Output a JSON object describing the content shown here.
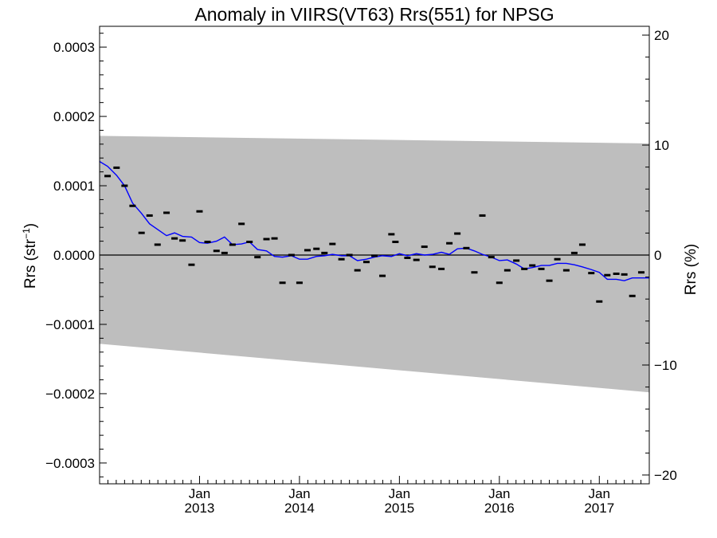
{
  "chart_data": {
    "type": "scatter",
    "title": "Anomaly in VIIRS(VT63) Rrs(551) for NPSG",
    "ylabel_left": "Rrs (str",
    "ylabel_left_sup": "−1",
    "ylabel_left_close": ")",
    "ylabel_right": "Rrs (%)",
    "ylim": [
      -0.00033,
      0.00033
    ],
    "ylim_right": [
      -20.8,
      20.8
    ],
    "xlim": [
      2012.0,
      2017.5
    ],
    "y_ticks": [
      {
        "value": 0.0003,
        "label": "0.0003"
      },
      {
        "value": 0.0002,
        "label": "0.0002"
      },
      {
        "value": 0.0001,
        "label": "0.0001"
      },
      {
        "value": 0.0,
        "label": "0.0000"
      },
      {
        "value": -0.0001,
        "label": "−0.0001"
      },
      {
        "value": -0.0002,
        "label": "−0.0002"
      },
      {
        "value": -0.0003,
        "label": "−0.0003"
      }
    ],
    "y_ticks_right": [
      {
        "value": 20,
        "label": "20"
      },
      {
        "value": 10,
        "label": "10"
      },
      {
        "value": 0,
        "label": "0"
      },
      {
        "value": -10,
        "label": "−10"
      },
      {
        "value": -20,
        "label": "−20"
      }
    ],
    "x_ticks": [
      {
        "value": 2013.0,
        "month": "Jan",
        "year": "2013"
      },
      {
        "value": 2014.0,
        "month": "Jan",
        "year": "2014"
      },
      {
        "value": 2015.0,
        "month": "Jan",
        "year": "2015"
      },
      {
        "value": 2016.0,
        "month": "Jan",
        "year": "2016"
      },
      {
        "value": 2017.0,
        "month": "Jan",
        "year": "2017"
      }
    ],
    "band": {
      "upper": [
        [
          2012.0,
          0.000172
        ],
        [
          2017.5,
          0.000161
        ]
      ],
      "lower": [
        [
          2012.0,
          -0.000128
        ],
        [
          2017.5,
          -0.000198
        ]
      ],
      "color": "#bebebe"
    },
    "points": [
      [
        2012.08,
        0.000114
      ],
      [
        2012.17,
        0.000126
      ],
      [
        2012.25,
        0.0001
      ],
      [
        2012.33,
        7.1e-05
      ],
      [
        2012.42,
        3.2e-05
      ],
      [
        2012.5,
        5.7e-05
      ],
      [
        2012.58,
        1.5e-05
      ],
      [
        2012.67,
        6.1e-05
      ],
      [
        2012.75,
        2.4e-05
      ],
      [
        2012.83,
        2.1e-05
      ],
      [
        2012.92,
        -1.4e-05
      ],
      [
        2013.0,
        6.3e-05
      ],
      [
        2013.08,
        1.9e-05
      ],
      [
        2013.17,
        6e-06
      ],
      [
        2013.25,
        3e-06
      ],
      [
        2013.33,
        1.5e-05
      ],
      [
        2013.42,
        4.5e-05
      ],
      [
        2013.5,
        1.9e-05
      ],
      [
        2013.58,
        -3e-06
      ],
      [
        2013.67,
        2.3e-05
      ],
      [
        2013.75,
        2.4e-05
      ],
      [
        2013.83,
        -4e-05
      ],
      [
        2013.92,
        0.0
      ],
      [
        2014.0,
        -4e-05
      ],
      [
        2014.08,
        7e-06
      ],
      [
        2014.17,
        9e-06
      ],
      [
        2014.25,
        3e-06
      ],
      [
        2014.33,
        1.6e-05
      ],
      [
        2014.42,
        -6e-06
      ],
      [
        2014.5,
        0.0
      ],
      [
        2014.58,
        -2.2e-05
      ],
      [
        2014.67,
        -1e-05
      ],
      [
        2014.75,
        -1e-06
      ],
      [
        2014.83,
        -3e-05
      ],
      [
        2014.92,
        3e-05
      ],
      [
        2014.96,
        1.9e-05
      ],
      [
        2015.08,
        -4e-06
      ],
      [
        2015.17,
        -7e-06
      ],
      [
        2015.25,
        1.2e-05
      ],
      [
        2015.33,
        -1.7e-05
      ],
      [
        2015.42,
        -2e-05
      ],
      [
        2015.5,
        1.7e-05
      ],
      [
        2015.58,
        3.1e-05
      ],
      [
        2015.67,
        1e-05
      ],
      [
        2015.75,
        -2.5e-05
      ],
      [
        2015.83,
        5.7e-05
      ],
      [
        2015.92,
        -3e-06
      ],
      [
        2016.0,
        -4e-05
      ],
      [
        2016.08,
        -2.2e-05
      ],
      [
        2016.17,
        -8e-06
      ],
      [
        2016.25,
        -2e-05
      ],
      [
        2016.33,
        -1.5e-05
      ],
      [
        2016.42,
        -2e-05
      ],
      [
        2016.5,
        -3.7e-05
      ],
      [
        2016.58,
        -6e-06
      ],
      [
        2016.67,
        -2.2e-05
      ],
      [
        2016.75,
        3e-06
      ],
      [
        2016.83,
        1.5e-05
      ],
      [
        2016.92,
        -2.6e-05
      ],
      [
        2017.0,
        -6.7e-05
      ],
      [
        2017.08,
        -2.9e-05
      ],
      [
        2017.17,
        -2.7e-05
      ],
      [
        2017.25,
        -2.8e-05
      ],
      [
        2017.33,
        -5.9e-05
      ],
      [
        2017.42,
        -2.5e-05
      ]
    ],
    "trend": [
      [
        2012.0,
        0.000135
      ],
      [
        2012.08,
        0.000128
      ],
      [
        2012.17,
        0.000115
      ],
      [
        2012.25,
        0.0001
      ],
      [
        2012.33,
        7.5e-05
      ],
      [
        2012.42,
        6e-05
      ],
      [
        2012.5,
        4.5e-05
      ],
      [
        2012.58,
        3.7e-05
      ],
      [
        2012.67,
        2.8e-05
      ],
      [
        2012.75,
        3.2e-05
      ],
      [
        2012.83,
        2.7e-05
      ],
      [
        2012.92,
        2.6e-05
      ],
      [
        2013.0,
        1.8e-05
      ],
      [
        2013.08,
        1.7e-05
      ],
      [
        2013.17,
        2e-05
      ],
      [
        2013.25,
        2.6e-05
      ],
      [
        2013.33,
        1.5e-05
      ],
      [
        2013.42,
        1.6e-05
      ],
      [
        2013.5,
        1.9e-05
      ],
      [
        2013.58,
        8e-06
      ],
      [
        2013.67,
        6e-06
      ],
      [
        2013.75,
        -2e-06
      ],
      [
        2013.83,
        -3e-06
      ],
      [
        2013.92,
        -1e-06
      ],
      [
        2014.0,
        -6e-06
      ],
      [
        2014.08,
        -6e-06
      ],
      [
        2014.17,
        -2e-06
      ],
      [
        2014.25,
        -1e-06
      ],
      [
        2014.33,
        1e-06
      ],
      [
        2014.42,
        -1e-06
      ],
      [
        2014.5,
        -1e-06
      ],
      [
        2014.58,
        -8e-06
      ],
      [
        2014.67,
        -6e-06
      ],
      [
        2014.75,
        -3e-06
      ],
      [
        2014.83,
        -1e-06
      ],
      [
        2014.92,
        -2e-06
      ],
      [
        2015.0,
        2e-06
      ],
      [
        2015.08,
        -1e-06
      ],
      [
        2015.17,
        2e-06
      ],
      [
        2015.25,
        0.0
      ],
      [
        2015.33,
        1e-06
      ],
      [
        2015.42,
        4e-06
      ],
      [
        2015.5,
        1e-06
      ],
      [
        2015.58,
        9e-06
      ],
      [
        2015.67,
        1e-05
      ],
      [
        2015.75,
        6e-06
      ],
      [
        2015.83,
        1e-06
      ],
      [
        2015.92,
        -3e-06
      ],
      [
        2016.0,
        -8e-06
      ],
      [
        2016.08,
        -7e-06
      ],
      [
        2016.17,
        -1.3e-05
      ],
      [
        2016.25,
        -2e-05
      ],
      [
        2016.33,
        -1.8e-05
      ],
      [
        2016.42,
        -1.5e-05
      ],
      [
        2016.5,
        -1.5e-05
      ],
      [
        2016.58,
        -1.2e-05
      ],
      [
        2016.67,
        -1.2e-05
      ],
      [
        2016.75,
        -1.4e-05
      ],
      [
        2016.83,
        -1.7e-05
      ],
      [
        2016.92,
        -2.1e-05
      ],
      [
        2017.0,
        -2.5e-05
      ],
      [
        2017.08,
        -3.5e-05
      ],
      [
        2017.17,
        -3.5e-05
      ],
      [
        2017.25,
        -3.7e-05
      ],
      [
        2017.33,
        -3.3e-05
      ],
      [
        2017.42,
        -3.3e-05
      ],
      [
        2017.5,
        -3.3e-05
      ]
    ],
    "trend_color": "#0000ff",
    "zero_line": true,
    "grid": false
  }
}
